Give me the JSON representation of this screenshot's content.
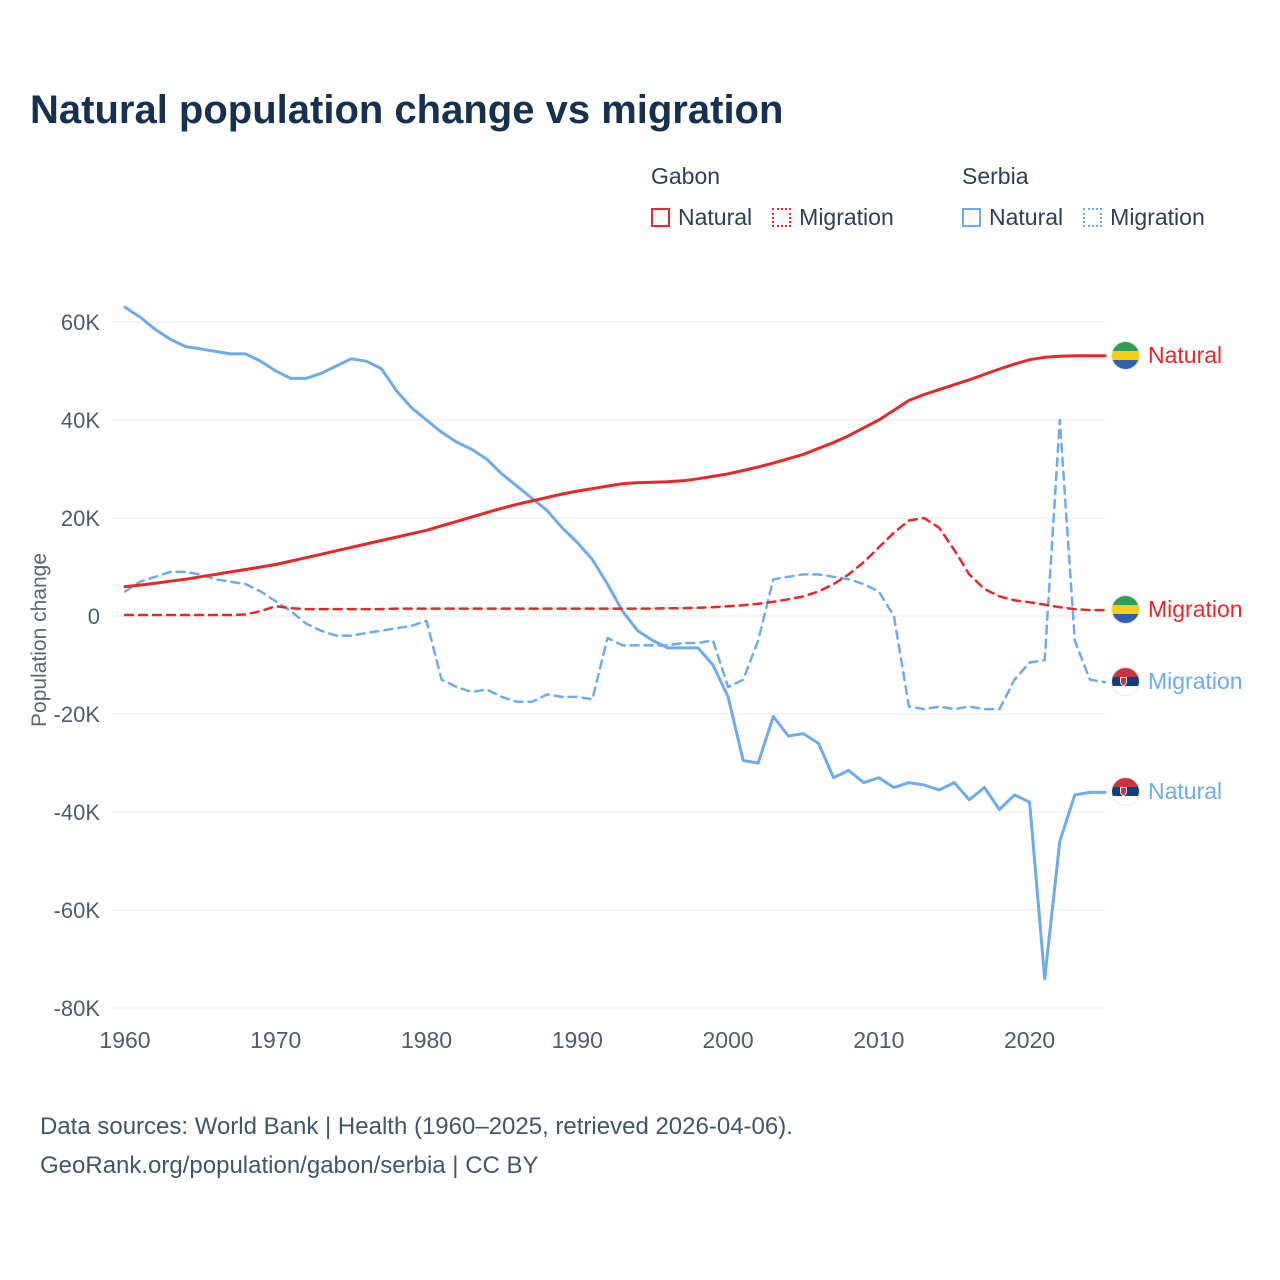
{
  "title": "Natural population change vs migration",
  "ylabel": "Population change",
  "colors": {
    "gabon": "#e5282d",
    "serbia": "#6dace8",
    "grid": "#eaeaea",
    "axis_text": "#4e5d6c",
    "title_text": "#16304f"
  },
  "legend": {
    "groups": [
      {
        "name": "Gabon",
        "items": [
          {
            "label": "Natural",
            "style": "solid",
            "color": "#e5282d"
          },
          {
            "label": "Migration",
            "style": "dashed",
            "color": "#e5282d"
          }
        ]
      },
      {
        "name": "Serbia",
        "items": [
          {
            "label": "Natural",
            "style": "solid",
            "color": "#6dace8"
          },
          {
            "label": "Migration",
            "style": "dashed",
            "color": "#6dace8"
          }
        ]
      }
    ]
  },
  "end_labels": [
    {
      "label": "Natural",
      "country": "gabon",
      "color": "#e5282d",
      "y_value": 53
    },
    {
      "label": "Migration",
      "country": "gabon",
      "color": "#e5282d",
      "y_value": 1.2
    },
    {
      "label": "Migration",
      "country": "serbia",
      "color": "#6dace8",
      "y_value": -13.5
    },
    {
      "label": "Natural",
      "country": "serbia",
      "color": "#6dace8",
      "y_value": -36
    }
  ],
  "footer": {
    "line1": "Data sources: World Bank | Health (1960–2025, retrieved 2026-04-06).",
    "line2": "GeoRank.org/population/gabon/serbia | CC BY"
  },
  "chart_data": {
    "type": "line",
    "title": "Natural population change vs migration",
    "xlabel": "",
    "ylabel": "Population change",
    "units": "thousands of people per year",
    "xlim": [
      1960,
      2025
    ],
    "ylim": [
      -80,
      60
    ],
    "grid": "horizontal",
    "legend_position": "top",
    "yticks": [
      60,
      40,
      20,
      0,
      -20,
      -40,
      -60,
      -80
    ],
    "ytick_labels": [
      "60K",
      "40K",
      "20K",
      "0",
      "-20K",
      "-40K",
      "-60K",
      "-80K"
    ],
    "xticks": [
      1960,
      1970,
      1980,
      1990,
      2000,
      2010,
      2020
    ],
    "x": [
      1960,
      1961,
      1962,
      1963,
      1964,
      1965,
      1966,
      1967,
      1968,
      1969,
      1970,
      1971,
      1972,
      1973,
      1974,
      1975,
      1976,
      1977,
      1978,
      1979,
      1980,
      1981,
      1982,
      1983,
      1984,
      1985,
      1986,
      1987,
      1988,
      1989,
      1990,
      1991,
      1992,
      1993,
      1994,
      1995,
      1996,
      1997,
      1998,
      1999,
      2000,
      2001,
      2002,
      2003,
      2004,
      2005,
      2006,
      2007,
      2008,
      2009,
      2010,
      2011,
      2012,
      2013,
      2014,
      2015,
      2016,
      2017,
      2018,
      2019,
      2020,
      2021,
      2022,
      2023,
      2024,
      2025
    ],
    "series": [
      {
        "name": "Gabon Natural",
        "country": "gabon",
        "style": "solid",
        "color": "#e5282d",
        "values": [
          6.0,
          6.3,
          6.7,
          7.1,
          7.5,
          8.0,
          8.5,
          9.0,
          9.5,
          10.0,
          10.5,
          11.2,
          11.9,
          12.6,
          13.3,
          14.0,
          14.7,
          15.4,
          16.1,
          16.8,
          17.5,
          18.4,
          19.3,
          20.2,
          21.1,
          22.0,
          22.8,
          23.5,
          24.2,
          24.9,
          25.5,
          26.0,
          26.5,
          27.0,
          27.2,
          27.3,
          27.4,
          27.6,
          28.0,
          28.5,
          29.0,
          29.7,
          30.4,
          31.2,
          32.1,
          33.0,
          34.2,
          35.4,
          36.8,
          38.4,
          40.0,
          42.0,
          44.0,
          45.2,
          46.2,
          47.2,
          48.2,
          49.3,
          50.4,
          51.4,
          52.3,
          52.8,
          53.0,
          53.1,
          53.1,
          53.1
        ]
      },
      {
        "name": "Gabon Migration",
        "country": "gabon",
        "style": "dashed",
        "color": "#e5282d",
        "values": [
          0.2,
          0.2,
          0.2,
          0.2,
          0.2,
          0.2,
          0.2,
          0.2,
          0.3,
          1.0,
          2.0,
          1.6,
          1.4,
          1.4,
          1.4,
          1.4,
          1.4,
          1.4,
          1.5,
          1.5,
          1.5,
          1.5,
          1.5,
          1.5,
          1.5,
          1.5,
          1.5,
          1.5,
          1.5,
          1.5,
          1.5,
          1.5,
          1.5,
          1.5,
          1.5,
          1.5,
          1.6,
          1.6,
          1.7,
          1.8,
          2.0,
          2.2,
          2.5,
          2.9,
          3.4,
          4.0,
          5.0,
          6.5,
          8.5,
          11.0,
          14.0,
          17.0,
          19.5,
          20.0,
          18.0,
          13.5,
          8.5,
          5.5,
          4.0,
          3.2,
          2.8,
          2.3,
          1.8,
          1.4,
          1.2,
          1.2
        ]
      },
      {
        "name": "Serbia Natural",
        "country": "serbia",
        "style": "solid",
        "color": "#6dace8",
        "values": [
          63.0,
          61.0,
          58.5,
          56.5,
          55.0,
          54.5,
          54.0,
          53.5,
          53.5,
          52.0,
          50.0,
          48.5,
          48.5,
          49.5,
          51.0,
          52.5,
          52.0,
          50.5,
          46.0,
          42.5,
          40.0,
          37.5,
          35.5,
          34.0,
          32.0,
          29.0,
          26.5,
          24.0,
          21.5,
          18.0,
          15.0,
          11.5,
          6.5,
          1.0,
          -3.0,
          -5.0,
          -6.5,
          -6.5,
          -6.5,
          -10.0,
          -16.5,
          -29.5,
          -30.0,
          -20.5,
          -24.5,
          -24.0,
          -26.0,
          -33.0,
          -31.5,
          -34.0,
          -33.0,
          -35.0,
          -34.0,
          -34.5,
          -35.5,
          -34.0,
          -37.5,
          -35.0,
          -39.5,
          -36.5,
          -38.0,
          -74.0,
          -46.0,
          -36.5,
          -36.0,
          -36.0
        ]
      },
      {
        "name": "Serbia Migration",
        "country": "serbia",
        "style": "dashed",
        "color": "#6dace8",
        "values": [
          5.0,
          7.0,
          8.0,
          9.0,
          9.0,
          8.5,
          7.5,
          7.0,
          6.5,
          5.0,
          3.0,
          1.0,
          -1.5,
          -3.0,
          -4.0,
          -4.0,
          -3.5,
          -3.0,
          -2.5,
          -2.0,
          -1.0,
          -13.0,
          -14.5,
          -15.5,
          -15.0,
          -16.5,
          -17.5,
          -17.5,
          -16.0,
          -16.5,
          -16.5,
          -17.0,
          -4.5,
          -6.0,
          -6.0,
          -6.0,
          -6.0,
          -5.5,
          -5.5,
          -5.0,
          -14.5,
          -13.0,
          -5.0,
          7.5,
          8.0,
          8.5,
          8.5,
          8.0,
          7.5,
          6.5,
          5.0,
          0.0,
          -18.5,
          -19.0,
          -18.5,
          -19.0,
          -18.5,
          -19.0,
          -19.0,
          -13.0,
          -9.5,
          -9.0,
          40.0,
          -5.0,
          -13.0,
          -13.5
        ]
      }
    ]
  }
}
